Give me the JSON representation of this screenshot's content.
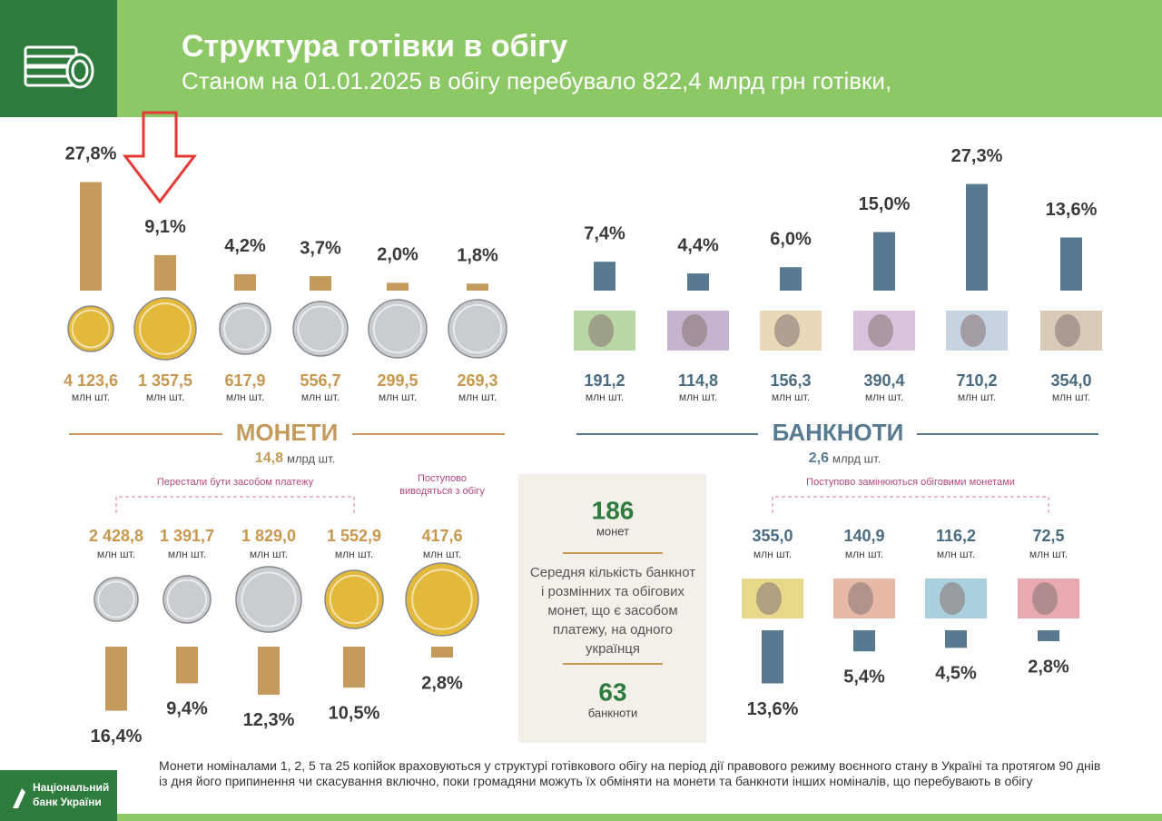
{
  "header": {
    "title": "Структура готівки в обігу",
    "subtitle": "Станом на 01.01.2025 в обігу перебувало 822,4 млрд грн готівки,"
  },
  "chart_data": [
    {
      "type": "bar",
      "color": "#c49a5d",
      "values": [
        27.8,
        9.1,
        4.2,
        3.7,
        2.0,
        1.8
      ],
      "value_labels": [
        "27,8%",
        "9,1%",
        "4,2%",
        "3,7%",
        "2,0%",
        "1,8%"
      ],
      "quantities": [
        "4 123,6",
        "1 357,5",
        "617,9",
        "556,7",
        "299,5",
        "269,3"
      ],
      "unit": "млн шт.",
      "item_colors": [
        "#e2b93b",
        "#e2b93b",
        "#c9ccd0",
        "#c9ccd0",
        "#c9ccd0",
        "#c9ccd0"
      ]
    },
    {
      "type": "bar",
      "color": "#587a91",
      "values": [
        7.4,
        4.4,
        6.0,
        15.0,
        27.3,
        13.6
      ],
      "value_labels": [
        "7,4%",
        "4,4%",
        "6,0%",
        "15,0%",
        "27,3%",
        "13,6%"
      ],
      "quantities": [
        "191,2",
        "114,8",
        "156,3",
        "390,4",
        "710,2",
        "354,0"
      ],
      "unit": "млн шт.",
      "item_colors": [
        "#b9d7a4",
        "#c5b4cf",
        "#e9d9b8",
        "#d8c3de",
        "#c7d3e3",
        "#d9c9b7"
      ]
    },
    {
      "type": "bar",
      "color": "#c49a5d",
      "values": [
        16.4,
        9.4,
        12.3,
        10.5,
        2.8
      ],
      "value_labels": [
        "16,4%",
        "9,4%",
        "12,3%",
        "10,5%",
        "2,8%"
      ],
      "quantities": [
        "2 428,8",
        "1 391,7",
        "1 829,0",
        "1 552,9",
        "417,6"
      ],
      "unit": "млн шт.",
      "item_colors": [
        "#c9ccd0",
        "#c9ccd0",
        "#c9ccd0",
        "#e2b93b",
        "#e2b93b"
      ]
    },
    {
      "type": "bar",
      "color": "#587a91",
      "values": [
        13.6,
        5.4,
        4.5,
        2.8
      ],
      "value_labels": [
        "13,6%",
        "5,4%",
        "4,5%",
        "2,8%"
      ],
      "quantities": [
        "355,0",
        "140,9",
        "116,2",
        "72,5"
      ],
      "unit": "млн шт.",
      "item_colors": [
        "#e8d98a",
        "#e9b9a8",
        "#a9d0dc",
        "#e9a9b0"
      ]
    }
  ],
  "sections": {
    "coins": {
      "title": "МОНЕТИ",
      "total": "14,8",
      "unit": "млрд шт."
    },
    "banknotes": {
      "title": "БАНКНОТИ",
      "total": "2,6",
      "unit": "млрд шт."
    }
  },
  "notes": {
    "coins_invalid": "Перестали бути засобом платежу",
    "coins_withdrawn": [
      "Поступово",
      "виводяться з обігу"
    ],
    "notes_replaced": "Поступово замінюються обіговими монетами"
  },
  "average": {
    "coins": "186",
    "coins_label": "монет",
    "text": "Середня кількість банкнот і розмінних та обігових монет, що є засобом платежу, на одного українця",
    "notes": "63",
    "notes_label": "банкноти"
  },
  "footer": {
    "logo": [
      "Національний",
      "банк України"
    ],
    "note": "Монети номіналами 1, 2, 5 та 25 копійок враховуються у структурі готівкового обігу на період дії правового режиму воєнного стану в Україні та протягом 90 днів із дня його припинення чи скасування включно, поки громадяни можуть їх обміняти на  монети та  банкноти інших номіналів, що перебувають  в  обігу"
  }
}
